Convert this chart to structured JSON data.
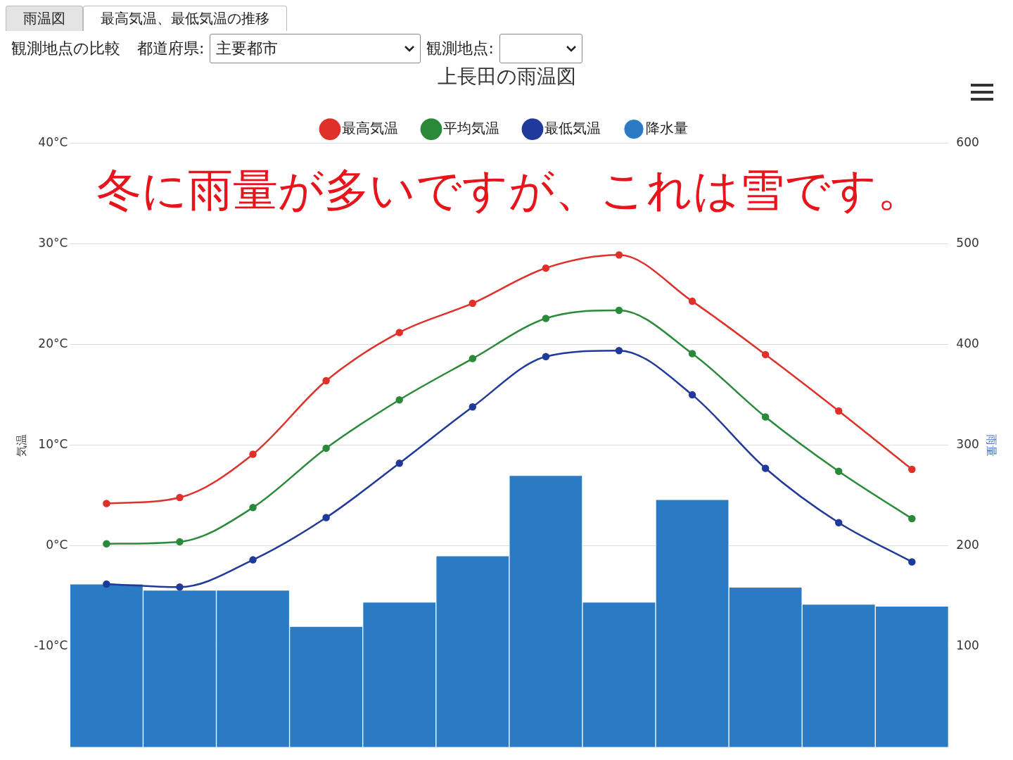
{
  "chart_data": {
    "type": "line",
    "title": "上長田の雨温図",
    "ylabel": "気温",
    "y2label": "雨量",
    "annotations": [
      "冬に雨量が多いですが、これは雪です。",
      "雨温図",
      "最高気温、最低気温の推移",
      "観測地点の比較",
      "都道府県:",
      "主要都市",
      "観測地点:"
    ],
    "categories": [
      null,
      null,
      null,
      null,
      null,
      null,
      null,
      null,
      null,
      null,
      null,
      null
    ],
    "series": [
      {
        "name": "最高気温",
        "color": "#e0302a",
        "values": [
          4.2,
          4.8,
          9.1,
          16.4,
          21.2,
          24.1,
          27.6,
          28.9,
          24.3,
          19.0,
          13.4,
          7.6
        ]
      },
      {
        "name": "平均気温",
        "color": "#2a8a3a",
        "values": [
          0.2,
          0.4,
          3.8,
          9.7,
          14.5,
          18.6,
          22.6,
          23.4,
          19.1,
          12.8,
          7.4,
          2.7
        ]
      },
      {
        "name": "最低気温",
        "color": "#1f3a9a",
        "values": [
          -3.8,
          -4.1,
          -1.4,
          2.8,
          8.2,
          13.8,
          18.8,
          19.4,
          15.0,
          7.7,
          2.3,
          -1.6
        ]
      },
      {
        "name": "降水量",
        "type": "bar",
        "axis": "y2",
        "color": "#2a7bc4",
        "values": [
          162,
          156,
          156,
          120,
          144,
          190,
          270,
          144,
          246,
          159,
          142,
          140
        ]
      }
    ],
    "ylim": [
      -20,
      40
    ],
    "yticks": [
      {
        "value": -10,
        "label": "-10°C"
      },
      {
        "value": 0,
        "label": "0°C"
      },
      {
        "value": 10,
        "label": "10°C"
      },
      {
        "value": 20,
        "label": "20°C"
      },
      {
        "value": 30,
        "label": "30°C"
      },
      {
        "value": 40,
        "label": "40°C"
      }
    ],
    "y2lim": [
      0,
      600
    ],
    "y2ticks": [
      100,
      200,
      300,
      400,
      500,
      600
    ],
    "grid": "y",
    "legend": "top",
    "marker": "circle"
  }
}
